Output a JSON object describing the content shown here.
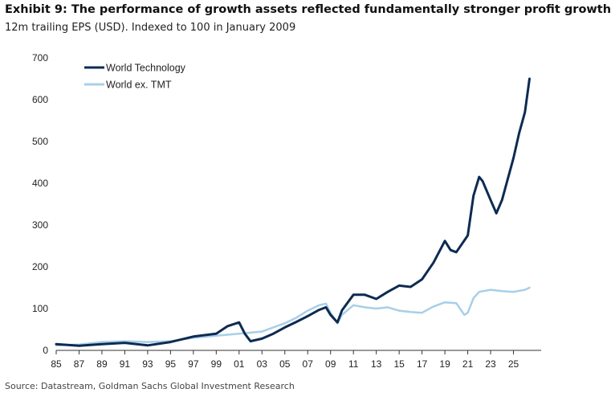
{
  "header": {
    "title": "Exhibit 9: The performance of growth assets reflected fundamentally stronger profit growth",
    "subtitle": "12m trailing EPS (USD). Indexed to 100 in January 2009"
  },
  "footer": {
    "source": "Source: Datastream, Goldman Sachs Global Investment Research"
  },
  "colors": {
    "world_technology": "#0d2b52",
    "world_ex_tmt": "#a8cfe8"
  },
  "chart_data": {
    "type": "line",
    "title": "Exhibit 9: The performance of growth assets reflected fundamentally stronger profit growth",
    "subtitle": "12m trailing EPS (USD). Indexed to 100 in January 2009",
    "xlabel": "",
    "ylabel": "",
    "xlim": [
      1985,
      2027
    ],
    "ylim": [
      0,
      700
    ],
    "x_ticks": [
      "85",
      "87",
      "89",
      "91",
      "93",
      "95",
      "97",
      "99",
      "01",
      "03",
      "05",
      "07",
      "09",
      "11",
      "13",
      "15",
      "17",
      "19",
      "21",
      "23",
      "25"
    ],
    "y_ticks": [
      0,
      100,
      200,
      300,
      400,
      500,
      600,
      700
    ],
    "grid": false,
    "legend_position": "top-left",
    "series": [
      {
        "name": "World Technology",
        "color": "#0d2b52",
        "x": [
          1985,
          1987,
          1989,
          1991,
          1993,
          1995,
          1997,
          1999,
          2000,
          2001,
          2001.5,
          2002,
          2003,
          2004,
          2005,
          2006,
          2007,
          2008,
          2008.6,
          2009,
          2009.6,
          2010,
          2011,
          2012,
          2013,
          2014,
          2015,
          2016,
          2017,
          2018,
          2019,
          2019.5,
          2020,
          2021,
          2021.5,
          2022,
          2022.3,
          2023,
          2023.5,
          2024,
          2025,
          2025.5,
          2026,
          2026.4
        ],
        "y": [
          15,
          11,
          15,
          18,
          12,
          20,
          33,
          40,
          58,
          67,
          40,
          22,
          28,
          40,
          55,
          68,
          82,
          97,
          103,
          85,
          67,
          96,
          133,
          133,
          123,
          140,
          155,
          152,
          170,
          210,
          262,
          240,
          235,
          275,
          370,
          415,
          405,
          360,
          328,
          360,
          460,
          520,
          570,
          650
        ]
      },
      {
        "name": "World ex. TMT",
        "color": "#a8cfe8",
        "x": [
          1985,
          1987,
          1989,
          1991,
          1993,
          1995,
          1997,
          1999,
          2001,
          2003,
          2005,
          2006,
          2007,
          2008,
          2008.6,
          2009,
          2009.6,
          2010,
          2011,
          2012,
          2013,
          2014,
          2015,
          2016,
          2017,
          2018,
          2019,
          2020,
          2020.7,
          2021,
          2021.5,
          2022,
          2023,
          2024,
          2025,
          2026,
          2026.4
        ],
        "y": [
          12,
          14,
          20,
          22,
          20,
          22,
          30,
          35,
          40,
          45,
          65,
          78,
          95,
          108,
          112,
          90,
          65,
          85,
          108,
          103,
          100,
          103,
          95,
          92,
          90,
          105,
          115,
          113,
          85,
          90,
          125,
          140,
          145,
          142,
          140,
          145,
          150
        ]
      }
    ]
  }
}
